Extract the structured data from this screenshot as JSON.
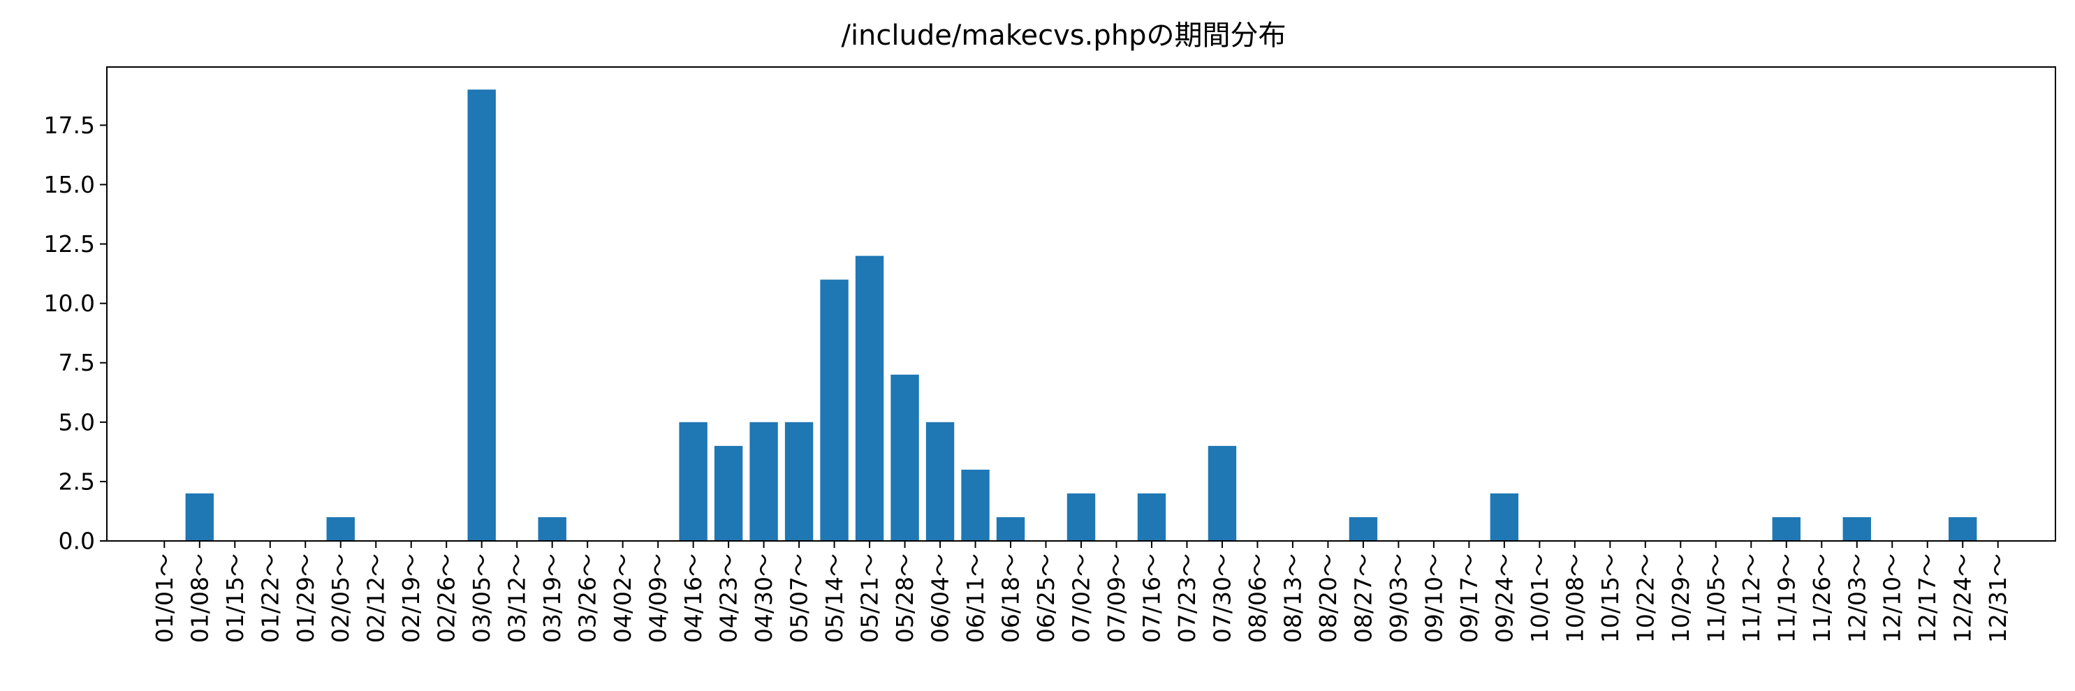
{
  "chart_data": {
    "type": "bar",
    "title": "/include/makecvs.phpの期間分布",
    "xlabel": "",
    "ylabel": "",
    "ylim": [
      0,
      19.95
    ],
    "yticks": [
      0.0,
      2.5,
      5.0,
      7.5,
      10.0,
      12.5,
      15.0,
      17.5
    ],
    "ytick_labels": [
      "0.0",
      "2.5",
      "5.0",
      "7.5",
      "10.0",
      "12.5",
      "15.0",
      "17.5"
    ],
    "grid": false,
    "legend": "none",
    "bar_color": "#1f77b4",
    "categories": [
      "01/01～",
      "01/08～",
      "01/15～",
      "01/22～",
      "01/29～",
      "02/05～",
      "02/12～",
      "02/19～",
      "02/26～",
      "03/05～",
      "03/12～",
      "03/19～",
      "03/26～",
      "04/02～",
      "04/09～",
      "04/16～",
      "04/23～",
      "04/30～",
      "05/07～",
      "05/14～",
      "05/21～",
      "05/28～",
      "06/04～",
      "06/11～",
      "06/18～",
      "06/25～",
      "07/02～",
      "07/09～",
      "07/16～",
      "07/23～",
      "07/30～",
      "08/06～",
      "08/13～",
      "08/20～",
      "08/27～",
      "09/03～",
      "09/10～",
      "09/17～",
      "09/24～",
      "10/01～",
      "10/08～",
      "10/15～",
      "10/22～",
      "10/29～",
      "11/05～",
      "11/12～",
      "11/19～",
      "11/26～",
      "12/03～",
      "12/10～",
      "12/17～",
      "12/24～",
      "12/31～"
    ],
    "values": [
      0,
      2,
      0,
      0,
      0,
      1,
      0,
      0,
      0,
      19,
      0,
      1,
      0,
      0,
      0,
      5,
      4,
      5,
      5,
      11,
      12,
      7,
      5,
      3,
      1,
      0,
      2,
      0,
      2,
      0,
      4,
      0,
      0,
      0,
      1,
      0,
      0,
      0,
      2,
      0,
      0,
      0,
      0,
      0,
      0,
      0,
      1,
      0,
      1,
      0,
      0,
      1,
      0
    ]
  }
}
